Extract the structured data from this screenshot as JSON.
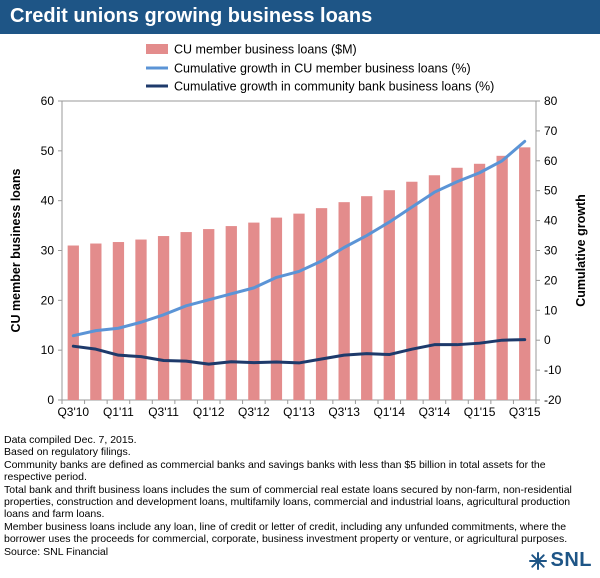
{
  "title": "Credit unions growing business loans",
  "chart_data": {
    "type": "bar",
    "categories": [
      "Q3'10",
      "Q4'10",
      "Q1'11",
      "Q2'11",
      "Q3'11",
      "Q4'11",
      "Q1'12",
      "Q2'12",
      "Q3'12",
      "Q4'12",
      "Q1'13",
      "Q2'13",
      "Q3'13",
      "Q4'13",
      "Q1'14",
      "Q2'14",
      "Q3'14",
      "Q4'14",
      "Q1'15",
      "Q2'15",
      "Q3'15"
    ],
    "tick_labels": [
      "Q3'10",
      "Q1'11",
      "Q3'11",
      "Q1'12",
      "Q3'12",
      "Q1'13",
      "Q3'13",
      "Q1'14",
      "Q3'14",
      "Q1'15",
      "Q3'15"
    ],
    "series": [
      {
        "name": "CU member business loans ($M)",
        "type": "bar",
        "axis": "left",
        "values": [
          31.0,
          31.4,
          31.7,
          32.2,
          32.9,
          33.7,
          34.3,
          34.9,
          35.6,
          36.6,
          37.4,
          38.5,
          39.7,
          40.9,
          42.1,
          43.8,
          45.1,
          46.6,
          47.4,
          49.0,
          50.7
        ]
      },
      {
        "name": "Cumulative growth in CU member business loans (%)",
        "type": "line",
        "axis": "right",
        "values": [
          1.5,
          3.2,
          4.0,
          6.0,
          8.5,
          11.5,
          13.5,
          15.5,
          17.5,
          21.0,
          23.0,
          26.5,
          31.0,
          35.0,
          39.5,
          44.5,
          49.5,
          53.0,
          56.0,
          60.0,
          66.5
        ]
      },
      {
        "name": "Cumulative growth in community bank business loans (%)",
        "type": "line",
        "axis": "right",
        "values": [
          -2.0,
          -3.0,
          -5.0,
          -5.5,
          -6.8,
          -7.0,
          -8.0,
          -7.2,
          -7.5,
          -7.3,
          -7.6,
          -6.3,
          -5.0,
          -4.5,
          -4.8,
          -3.0,
          -1.5,
          -1.5,
          -1.0,
          0.0,
          0.2
        ]
      }
    ],
    "colors": {
      "bars": "#e38c8c",
      "cu_line": "#5b94d6",
      "cb_line": "#1e3a6b"
    },
    "ylabel_left": "CU member business loans",
    "ylabel_right": "Cumulative growth",
    "ylim_left": [
      0,
      60
    ],
    "ylim_right": [
      -20,
      80
    ],
    "yticks_left": [
      0,
      10,
      20,
      30,
      40,
      50,
      60
    ],
    "yticks_right": [
      -20,
      -10,
      0,
      10,
      20,
      30,
      40,
      50,
      60,
      70,
      80
    ],
    "legend_position": "top-center",
    "grid": false
  },
  "notes": [
    "Data compiled Dec. 7, 2015.",
    "Based on regulatory filings.",
    "Community banks are defined as commercial banks and savings banks with less than $5 billion in total assets for the respective period.",
    "Total bank and thrift business loans includes the sum of commercial real estate loans secured by non-farm, non-residential properties, construction and development loans, multifamily loans, commercial and industrial loans, agricultural production loans and farm loans.",
    "Member business loans include any loan, line of credit or letter of credit, including any unfunded commitments, where the borrower uses the proceeds for commercial, corporate, business investment property or venture, or agricultural purposes.",
    "Source: SNL Financial"
  ],
  "logo": {
    "text": "SNL",
    "icon": "snl-star-icon"
  }
}
